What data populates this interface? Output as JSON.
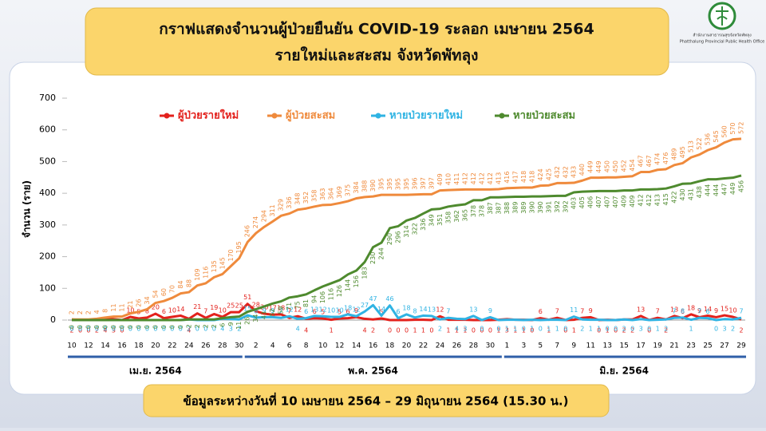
{
  "header": {
    "title_lines": [
      "กราฟแสดงจำนวนผู้ป่วยยืนยัน COVID-19 ระลอก เมษายน 2564",
      "รายใหม่และสะสม จังหวัดพัทลุง"
    ],
    "org_th": "สำนักงานสาธารณสุขจังหวัดพัทลุง",
    "org_en": "Phatthalung Provincial Public Health Office"
  },
  "chart_data": {
    "type": "line",
    "y_label": "จำนวน (ราย)",
    "categories": [
      "10",
      null,
      "12",
      null,
      "14",
      null,
      "16",
      null,
      "18",
      null,
      "20",
      null,
      "22",
      null,
      "24",
      null,
      "26",
      null,
      "28",
      null,
      "30",
      null,
      "2",
      null,
      "4",
      null,
      "6",
      null,
      "8",
      null,
      "10",
      null,
      "12",
      null,
      "14",
      null,
      "16",
      null,
      "18",
      null,
      "20",
      null,
      "22",
      null,
      "24",
      null,
      "26",
      null,
      "28",
      null,
      "30",
      null,
      "1",
      null,
      "3",
      null,
      "5",
      null,
      "7",
      null,
      "9",
      null,
      "11",
      null,
      "13",
      null,
      "15",
      null,
      "17",
      null,
      "19",
      null,
      "21",
      null,
      "23",
      null,
      "25",
      null,
      "27",
      null,
      "29"
    ],
    "months": [
      "เม.ย. 2564",
      "พ.ค. 2564",
      "มิ.ย. 2564"
    ],
    "ylim": [
      0,
      700
    ],
    "yticks": [
      0,
      100,
      200,
      300,
      400,
      500,
      600,
      700
    ],
    "grid": false,
    "series": [
      {
        "name": "ผู้ป่วยรายใหม่",
        "color": "#e3211c",
        "kind": "new",
        "values": [
          2,
          0,
          0,
          2,
          4,
          3,
          0,
          10,
          5,
          8,
          20,
          6,
          10,
          14,
          4,
          21,
          7,
          19,
          10,
          25,
          25,
          51,
          28,
          20,
          17,
          18,
          7,
          12,
          4,
          6,
          5,
          1,
          5,
          6,
          9,
          4,
          2,
          5,
          0,
          0,
          0,
          1,
          1,
          0,
          12,
          1,
          1,
          1,
          0,
          0,
          0,
          1,
          3,
          1,
          1,
          0,
          6,
          1,
          7,
          0,
          1,
          7,
          9,
          0,
          1,
          0,
          2,
          2,
          13,
          0,
          7,
          2,
          13,
          6,
          18,
          9,
          14,
          9,
          15,
          10,
          2
        ]
      },
      {
        "name": "ผู้ป่วยสะสม",
        "color": "#ef8a3c",
        "kind": "cum",
        "values": [
          2,
          2,
          2,
          4,
          8,
          11,
          11,
          21,
          26,
          34,
          54,
          60,
          70,
          84,
          88,
          109,
          116,
          135,
          145,
          170,
          195,
          246,
          274,
          294,
          311,
          329,
          336,
          348,
          352,
          358,
          363,
          364,
          369,
          375,
          384,
          388,
          390,
          395,
          395,
          395,
          395,
          396,
          397,
          397,
          409,
          410,
          411,
          412,
          412,
          412,
          412,
          413,
          416,
          417,
          418,
          418,
          424,
          425,
          432,
          432,
          433,
          440,
          449,
          449,
          450,
          450,
          452,
          454,
          467,
          467,
          474,
          476,
          489,
          495,
          513,
          522,
          536,
          545,
          560,
          570,
          572
        ]
      },
      {
        "name": "หายป่วยรายใหม่",
        "color": "#2fb3e3",
        "kind": "new",
        "values": [
          0,
          0,
          0,
          0,
          0,
          0,
          0,
          0,
          0,
          0,
          0,
          0,
          0,
          0,
          2,
          0,
          0,
          0,
          4,
          3,
          2,
          15,
          8,
          9,
          9,
          7,
          12,
          4,
          6,
          13,
          12,
          10,
          10,
          18,
          12,
          27,
          47,
          14,
          46,
          6,
          18,
          8,
          14,
          13,
          2,
          7,
          4,
          3,
          13,
          0,
          9,
          0,
          1,
          1,
          0,
          1,
          0,
          1,
          1,
          0,
          11,
          2,
          1,
          1,
          0,
          0,
          2,
          0,
          3,
          0,
          1,
          2,
          7,
          8,
          1,
          7,
          6,
          0,
          3,
          2,
          7
        ]
      },
      {
        "name": "หายป่วยสะสม",
        "color": "#4e8a2e",
        "kind": "cum",
        "values": [
          0,
          0,
          0,
          0,
          0,
          0,
          0,
          0,
          0,
          0,
          0,
          0,
          0,
          0,
          2,
          2,
          2,
          2,
          6,
          9,
          11,
          26,
          34,
          43,
          52,
          59,
          71,
          75,
          81,
          94,
          106,
          116,
          126,
          144,
          156,
          183,
          230,
          244,
          290,
          296,
          314,
          322,
          336,
          349,
          351,
          358,
          362,
          365,
          378,
          378,
          387,
          387,
          388,
          389,
          389,
          390,
          390,
          391,
          392,
          392,
          403,
          405,
          406,
          407,
          407,
          407,
          409,
          409,
          412,
          412,
          413,
          415,
          422,
          430,
          431,
          438,
          444,
          444,
          447,
          449,
          456
        ]
      }
    ]
  },
  "footer": "ข้อมูลระหว่างวันที่ 10 เมษายน 2564 – 29 มิถุนายน 2564 (15.30 น.)"
}
